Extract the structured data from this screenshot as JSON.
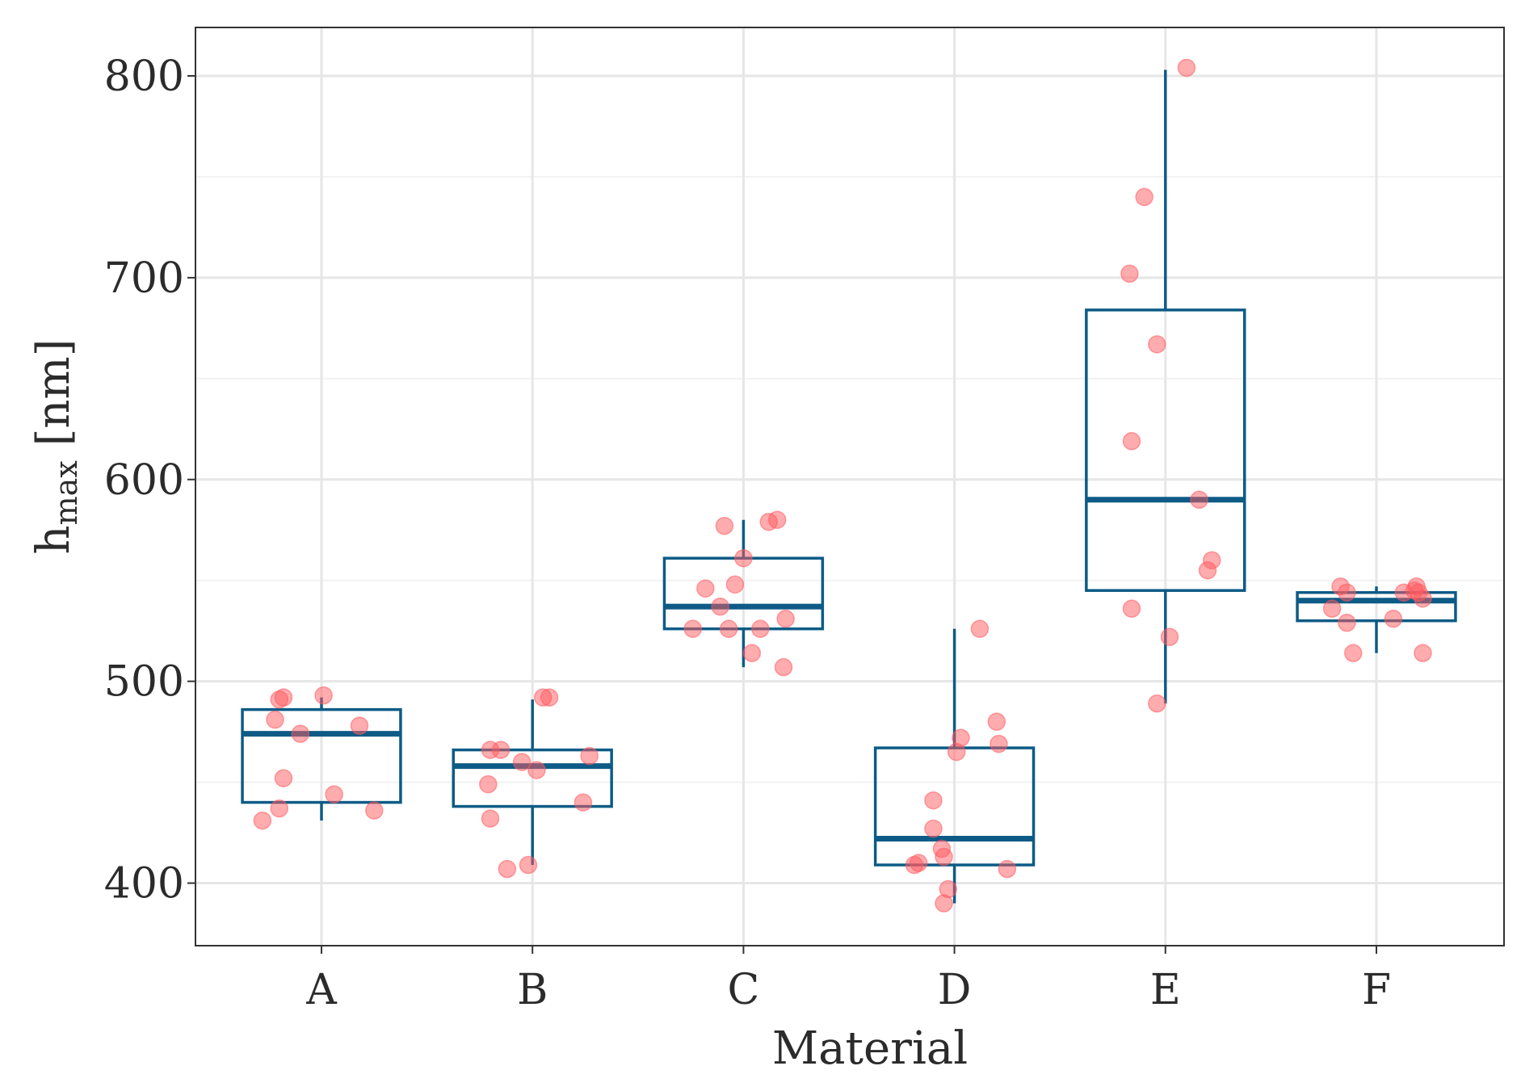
{
  "chart_data": {
    "type": "boxplot",
    "xlabel": "Material",
    "ylabel_main": "h",
    "ylabel_sub": "max",
    "ylabel_unit": " [nm]",
    "ylim": [
      369,
      824
    ],
    "yticks": [
      400,
      500,
      600,
      700,
      800
    ],
    "yminor": [
      450,
      550,
      650,
      750
    ],
    "categories": [
      "A",
      "B",
      "C",
      "D",
      "E",
      "F"
    ],
    "groups": [
      {
        "name": "A",
        "whisker_low": 431,
        "q1": 440,
        "median": 474,
        "q3": 486,
        "whisker_high": 492,
        "points": [
          [
            -0.28,
            431
          ],
          [
            -0.2,
            437
          ],
          [
            -0.18,
            452
          ],
          [
            -0.22,
            481
          ],
          [
            -0.2,
            491
          ],
          [
            -0.18,
            492
          ],
          [
            0.01,
            493
          ],
          [
            -0.1,
            474
          ],
          [
            0.06,
            444
          ],
          [
            0.18,
            478
          ],
          [
            0.25,
            436
          ]
        ]
      },
      {
        "name": "B",
        "whisker_low": 409,
        "q1": 438,
        "median": 458,
        "q3": 466,
        "whisker_high": 491,
        "points": [
          [
            -0.2,
            466
          ],
          [
            -0.21,
            449
          ],
          [
            -0.2,
            432
          ],
          [
            -0.12,
            407
          ],
          [
            -0.02,
            409
          ],
          [
            -0.05,
            460
          ],
          [
            0.02,
            456
          ],
          [
            -0.15,
            466
          ],
          [
            0.05,
            492
          ],
          [
            0.08,
            492
          ],
          [
            0.27,
            463
          ],
          [
            0.24,
            440
          ]
        ]
      },
      {
        "name": "C",
        "whisker_low": 507,
        "q1": 526,
        "median": 537,
        "q3": 561,
        "whisker_high": 580,
        "points": [
          [
            -0.24,
            526
          ],
          [
            -0.18,
            546
          ],
          [
            -0.11,
            537
          ],
          [
            -0.09,
            577
          ],
          [
            -0.07,
            526
          ],
          [
            -0.04,
            548
          ],
          [
            0.0,
            561
          ],
          [
            0.04,
            514
          ],
          [
            0.08,
            526
          ],
          [
            0.12,
            579
          ],
          [
            0.16,
            580
          ],
          [
            0.2,
            531
          ],
          [
            0.19,
            507
          ]
        ]
      },
      {
        "name": "D",
        "whisker_low": 390,
        "q1": 409,
        "median": 422,
        "q3": 467,
        "whisker_high": 526,
        "points": [
          [
            -0.19,
            409
          ],
          [
            -0.17,
            410
          ],
          [
            -0.1,
            441
          ],
          [
            -0.1,
            427
          ],
          [
            -0.06,
            417
          ],
          [
            -0.05,
            413
          ],
          [
            -0.03,
            397
          ],
          [
            -0.05,
            390
          ],
          [
            0.01,
            465
          ],
          [
            0.03,
            472
          ],
          [
            0.12,
            526
          ],
          [
            0.2,
            480
          ],
          [
            0.21,
            469
          ],
          [
            0.25,
            407
          ]
        ]
      },
      {
        "name": "E",
        "whisker_low": 489,
        "q1": 545,
        "median": 590,
        "q3": 684,
        "whisker_high": 803,
        "points": [
          [
            -0.17,
            702
          ],
          [
            -0.16,
            619
          ],
          [
            -0.16,
            536
          ],
          [
            -0.1,
            740
          ],
          [
            -0.04,
            667
          ],
          [
            -0.04,
            489
          ],
          [
            0.02,
            522
          ],
          [
            0.1,
            804
          ],
          [
            0.16,
            590
          ],
          [
            0.2,
            555
          ],
          [
            0.22,
            560
          ]
        ]
      },
      {
        "name": "F",
        "whisker_low": 514,
        "q1": 530,
        "median": 540,
        "q3": 544,
        "whisker_high": 547,
        "points": [
          [
            -0.21,
            536
          ],
          [
            -0.17,
            547
          ],
          [
            -0.14,
            544
          ],
          [
            -0.14,
            529
          ],
          [
            -0.11,
            514
          ],
          [
            0.08,
            531
          ],
          [
            0.13,
            544
          ],
          [
            0.18,
            545
          ],
          [
            0.19,
            547
          ],
          [
            0.2,
            544
          ],
          [
            0.22,
            541
          ],
          [
            0.22,
            514
          ]
        ]
      }
    ]
  }
}
